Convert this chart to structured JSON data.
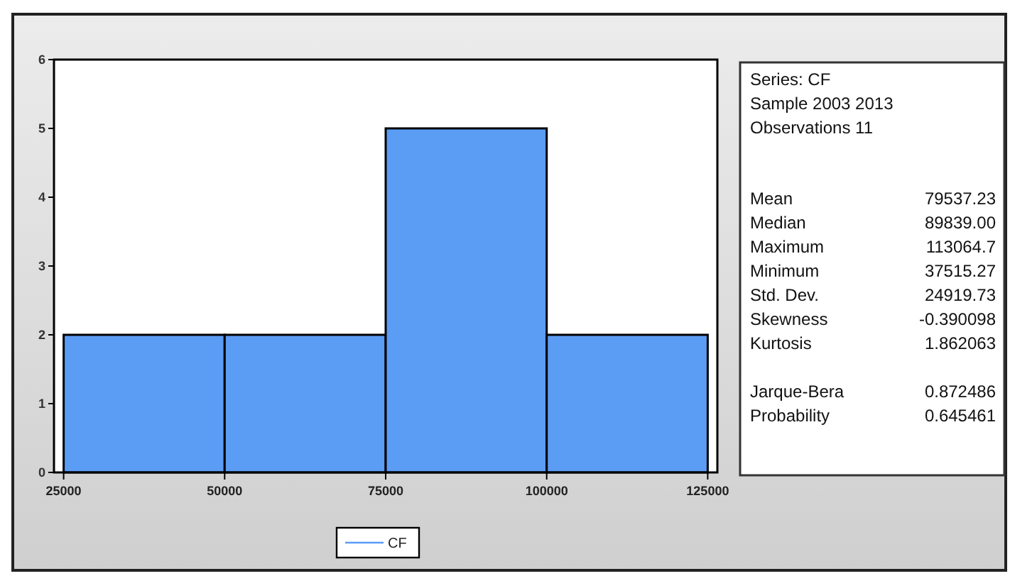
{
  "chart_data": [
    {
      "type": "histogram",
      "bins": [
        25000,
        50000,
        75000,
        100000,
        125000
      ],
      "series": [
        {
          "name": "CF",
          "color": "#5b9cf4",
          "values": [
            2,
            2,
            5,
            2
          ]
        }
      ],
      "xlim": [
        23500,
        126500
      ],
      "xticks": [
        25000,
        50000,
        75000,
        100000,
        125000
      ],
      "ylim": [
        0,
        6
      ],
      "yticks": [
        0,
        1,
        2,
        3,
        4,
        5,
        6
      ],
      "grid": false,
      "legend": "bottom"
    },
    {
      "type": "other",
      "annotations": [
        "Series: CF",
        "Sample 2003 2013",
        "Observations 11",
        "Mean",
        "79537.23",
        "Median",
        "89839.00",
        "Maximum",
        "113064.7",
        "Minimum",
        "37515.27",
        "Std. Dev.",
        "24919.73",
        "Skewness",
        "-0.390098",
        "Kurtosis",
        "1.862063",
        "Jarque-Bera",
        "0.872486",
        "Probability",
        "0.645461"
      ]
    }
  ]
}
